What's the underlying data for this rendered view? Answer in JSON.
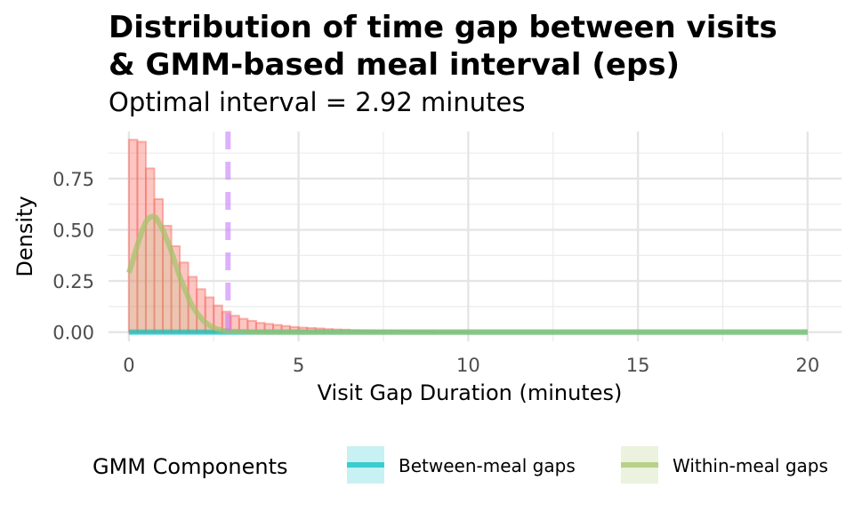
{
  "chart_data": {
    "type": "bar",
    "title": "Distribution of time gap between visits\n& GMM-based meal interval (eps)",
    "subtitle": "Optimal interval = 2.92 minutes",
    "xlabel": "Visit Gap Duration (minutes)",
    "ylabel": "Density",
    "xlim": [
      -0.6,
      21.0
    ],
    "ylim": [
      -0.045,
      0.98
    ],
    "x_ticks": [
      0,
      5,
      10,
      15,
      20
    ],
    "x_tick_labels": [
      "0",
      "5",
      "10",
      "15",
      "20"
    ],
    "y_ticks": [
      0.0,
      0.25,
      0.5,
      0.75
    ],
    "y_tick_labels": [
      "0.00",
      "0.25",
      "0.50",
      "0.75"
    ],
    "grid": true,
    "histogram": {
      "bin_width": 0.25,
      "x_start": 0.0,
      "values": [
        0.94,
        0.93,
        0.8,
        0.65,
        0.52,
        0.42,
        0.34,
        0.27,
        0.21,
        0.17,
        0.13,
        0.1,
        0.08,
        0.065,
        0.055,
        0.045,
        0.04,
        0.035,
        0.03,
        0.025,
        0.022,
        0.02,
        0.018,
        0.015,
        0.013,
        0.012,
        0.01,
        0.009,
        0.008,
        0.007,
        0.006,
        0.005,
        0.004,
        0.004,
        0.003,
        0.003,
        0.002,
        0.002,
        0.002,
        0.001
      ],
      "color": "#f8766d"
    },
    "eps_line": {
      "x": 2.92,
      "color": "#c77cff"
    },
    "series": [
      {
        "name": "Between-meal gaps",
        "color": "#00bfc4",
        "x": [
          0,
          2,
          4,
          6,
          8,
          10,
          12,
          14,
          16,
          18,
          20
        ],
        "values": [
          0.0,
          0.0,
          0.0,
          0.0,
          0.0,
          0.0,
          0.0,
          0.0,
          0.0,
          0.0,
          0.0
        ]
      },
      {
        "name": "Within-meal gaps",
        "color": "#a3c46a",
        "x": [
          0.0,
          0.1,
          0.2,
          0.3,
          0.4,
          0.5,
          0.6,
          0.7,
          0.8,
          0.9,
          1.0,
          1.1,
          1.2,
          1.3,
          1.4,
          1.5,
          1.6,
          1.7,
          1.8,
          1.9,
          2.0,
          2.2,
          2.4,
          2.6,
          2.8,
          3.0,
          3.5,
          4.0,
          5.0,
          7.0,
          10.0,
          15.0,
          20.0
        ],
        "values": [
          0.29,
          0.34,
          0.4,
          0.45,
          0.5,
          0.54,
          0.56,
          0.565,
          0.56,
          0.53,
          0.5,
          0.46,
          0.42,
          0.37,
          0.32,
          0.27,
          0.23,
          0.19,
          0.15,
          0.12,
          0.095,
          0.055,
          0.03,
          0.015,
          0.008,
          0.004,
          0.001,
          0.0,
          0.0,
          0.0,
          0.0,
          0.0,
          0.0
        ]
      }
    ],
    "legend": {
      "title": "GMM Components",
      "position": "bottom",
      "items": [
        "Between-meal gaps",
        "Within-meal gaps"
      ]
    }
  }
}
